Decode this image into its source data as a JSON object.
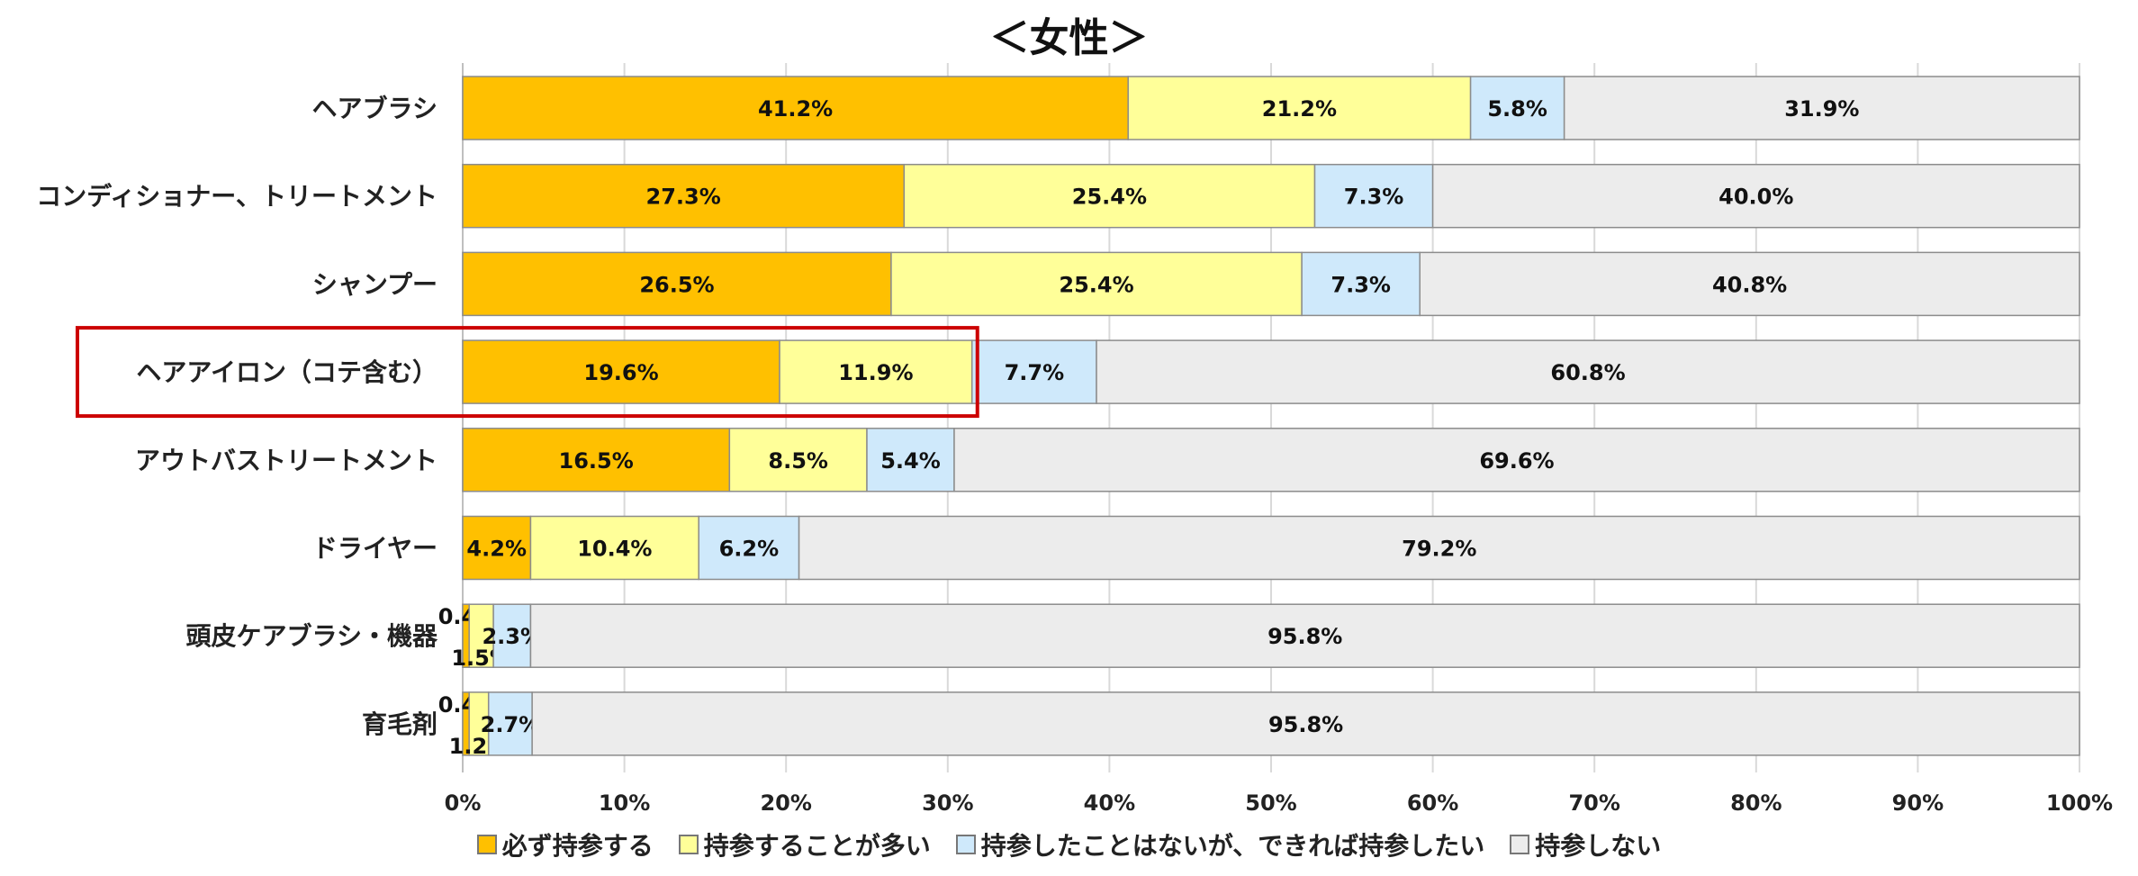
{
  "chart_data": {
    "type": "bar",
    "orientation": "horizontal",
    "stacked": "percent",
    "title": "＜女性＞",
    "categories": [
      "ヘアブラシ",
      "コンディショナー、トリートメント",
      "シャンプー",
      "ヘアアイロン（コテ含む）",
      "アウトバストリートメント",
      "ドライヤー",
      "頭皮ケアブラシ・機器",
      "育毛剤"
    ],
    "series": [
      {
        "name": "必ず持参する",
        "color": "#ffc000",
        "values": [
          41.2,
          27.3,
          26.5,
          19.6,
          16.5,
          4.2,
          0.4,
          0.4
        ]
      },
      {
        "name": "持参することが多い",
        "color": "#ffff99",
        "values": [
          21.2,
          25.4,
          25.4,
          11.9,
          8.5,
          10.4,
          1.5,
          1.2
        ]
      },
      {
        "name": "持参したことはないが、できれば持参したい",
        "color": "#cfe9fb",
        "values": [
          5.8,
          7.3,
          7.3,
          7.7,
          5.4,
          6.2,
          2.3,
          2.7
        ]
      },
      {
        "name": "持参しない",
        "color": "#ececec",
        "values": [
          31.9,
          40.0,
          40.8,
          60.8,
          69.6,
          79.2,
          95.8,
          95.8
        ]
      }
    ],
    "value_labels": [
      [
        "41.2%",
        "21.2%",
        "5.8%",
        "31.9%"
      ],
      [
        "27.3%",
        "25.4%",
        "7.3%",
        "40.0%"
      ],
      [
        "26.5%",
        "25.4%",
        "7.3%",
        "40.8%"
      ],
      [
        "19.6%",
        "11.9%",
        "7.7%",
        "60.8%"
      ],
      [
        "16.5%",
        "8.5%",
        "5.4%",
        "69.6%"
      ],
      [
        "4.2%",
        "10.4%",
        "6.2%",
        "79.2%"
      ],
      [
        "0.4%",
        "1.5%",
        "2.3%",
        "95.8%"
      ],
      [
        "0.4%",
        "1.2%",
        "2.7%",
        "95.8%"
      ]
    ],
    "x_ticks": [
      "0%",
      "10%",
      "20%",
      "30%",
      "40%",
      "50%",
      "60%",
      "70%",
      "80%",
      "90%",
      "100%"
    ],
    "xlim": [
      0,
      100
    ],
    "grid": true,
    "legend_position": "bottom",
    "highlight": {
      "category": "ヘアアイロン（コテ含む）",
      "span": "必ず持参する + 持参することが多い",
      "color": "#cc0000"
    }
  }
}
